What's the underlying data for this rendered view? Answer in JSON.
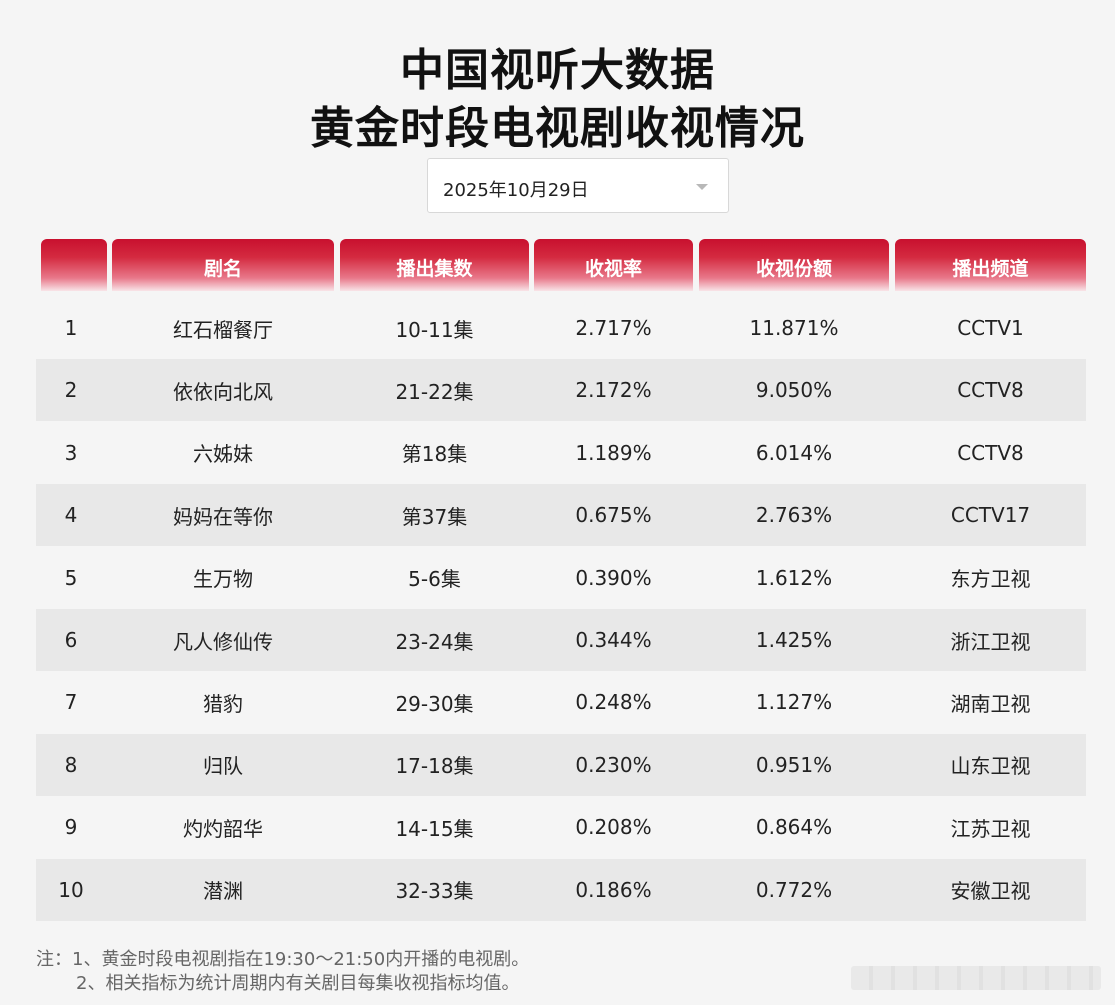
{
  "title": {
    "line1": "中国视听大数据",
    "line2": "黄金时段电视剧收视情况"
  },
  "date_select": {
    "value": "2025年10月29日",
    "icon": "chevron-down-icon"
  },
  "colors": {
    "header_red": "#c8102e",
    "row_shade": "#e8e8e8",
    "background": "#f5f5f5"
  },
  "table": {
    "headers": [
      "",
      "剧名",
      "播出集数",
      "收视率",
      "收视份额",
      "播出频道"
    ],
    "rows": [
      {
        "rank": "1",
        "name": "红石榴餐厅",
        "episodes": "10-11集",
        "rating": "2.717%",
        "share": "11.871%",
        "channel": "CCTV1"
      },
      {
        "rank": "2",
        "name": "依依向北风",
        "episodes": "21-22集",
        "rating": "2.172%",
        "share": "9.050%",
        "channel": "CCTV8"
      },
      {
        "rank": "3",
        "name": "六姊妹",
        "episodes": "第18集",
        "rating": "1.189%",
        "share": "6.014%",
        "channel": "CCTV8"
      },
      {
        "rank": "4",
        "name": "妈妈在等你",
        "episodes": "第37集",
        "rating": "0.675%",
        "share": "2.763%",
        "channel": "CCTV17"
      },
      {
        "rank": "5",
        "name": "生万物",
        "episodes": "5-6集",
        "rating": "0.390%",
        "share": "1.612%",
        "channel": "东方卫视"
      },
      {
        "rank": "6",
        "name": "凡人修仙传",
        "episodes": "23-24集",
        "rating": "0.344%",
        "share": "1.425%",
        "channel": "浙江卫视"
      },
      {
        "rank": "7",
        "name": "猎豹",
        "episodes": "29-30集",
        "rating": "0.248%",
        "share": "1.127%",
        "channel": "湖南卫视"
      },
      {
        "rank": "8",
        "name": "归队",
        "episodes": "17-18集",
        "rating": "0.230%",
        "share": "0.951%",
        "channel": "山东卫视"
      },
      {
        "rank": "9",
        "name": "灼灼韶华",
        "episodes": "14-15集",
        "rating": "0.208%",
        "share": "0.864%",
        "channel": "江苏卫视"
      },
      {
        "rank": "10",
        "name": "潜渊",
        "episodes": "32-33集",
        "rating": "0.186%",
        "share": "0.772%",
        "channel": "安徽卫视"
      }
    ]
  },
  "notes": [
    "注：1、黄金时段电视剧指在19:30～21:50内开播的电视剧。",
    "2、相关指标为统计周期内有关剧目每集收视指标均值。"
  ]
}
